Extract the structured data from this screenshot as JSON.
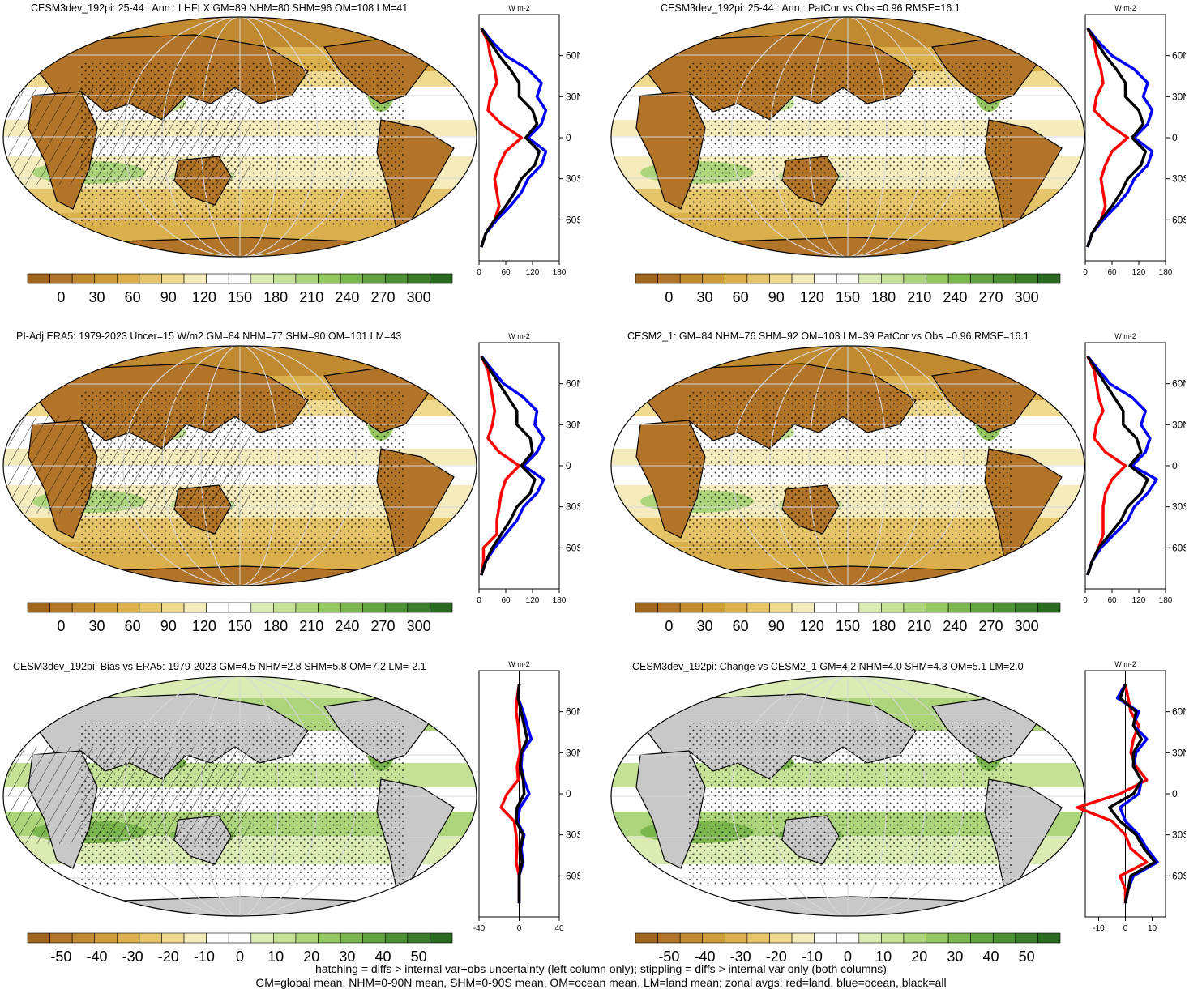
{
  "colors": {
    "land_line": "#ff0000",
    "ocean_line": "#0000ff",
    "all_line": "#000000",
    "missing_gray": "#c8c8c8",
    "abs_scale": [
      "#a0661e",
      "#b27428",
      "#c18a30",
      "#cf9c3a",
      "#dbb04c",
      "#e6c46a",
      "#eed98e",
      "#f5ebbc",
      "#ffffff",
      "#ffffff",
      "#dcebb4",
      "#c4e196",
      "#acd47a",
      "#94c662",
      "#7cb64e",
      "#64a440",
      "#4d9034",
      "#3a7c2a",
      "#2a6a20"
    ],
    "diff_scale": [
      "#a0661e",
      "#b27428",
      "#c18a30",
      "#cf9c3a",
      "#dbb04c",
      "#e6c46a",
      "#eed98e",
      "#f5ebbc",
      "#ffffff",
      "#ffffff",
      "#dcebb4",
      "#c4e196",
      "#acd47a",
      "#94c662",
      "#7cb64e",
      "#64a440",
      "#4d9034",
      "#3a7c2a",
      "#2a6a20"
    ]
  },
  "panels": [
    {
      "id": "p1",
      "title": "CESM3dev_192pi: 25-44 : Ann : LHFLX GM=89 NHM=80 SHM=96 OM=108 LM=41",
      "map_kind": "abs",
      "hatched": true,
      "colorbar_labels": [
        "0",
        "30",
        "60",
        "90",
        "120",
        "150",
        "180",
        "210",
        "240",
        "270",
        "300"
      ],
      "zonal": {
        "unit": "W m-2",
        "lat_labels": [
          "60N",
          "30N",
          "0",
          "30S",
          "60S"
        ],
        "lat_values": [
          60,
          30,
          0,
          -30,
          -60
        ],
        "xlim": [
          0,
          180
        ],
        "x_labels": [
          "0",
          "60",
          "120",
          "180"
        ],
        "x_ticks": [
          0,
          60,
          120,
          180
        ],
        "lat": [
          80,
          70,
          60,
          50,
          40,
          30,
          20,
          10,
          0,
          -10,
          -20,
          -30,
          -40,
          -50,
          -60,
          -70,
          -80
        ],
        "land": [
          5,
          20,
          25,
          35,
          40,
          25,
          20,
          50,
          95,
          60,
          45,
          35,
          40,
          45,
          35,
          15,
          5
        ],
        "ocean": [
          5,
          30,
          60,
          110,
          140,
          130,
          150,
          140,
          110,
          150,
          140,
          110,
          95,
          70,
          40,
          15,
          5
        ],
        "all": [
          5,
          25,
          45,
          70,
          90,
          90,
          120,
          130,
          105,
          135,
          125,
          95,
          80,
          60,
          35,
          15,
          5
        ]
      }
    },
    {
      "id": "p2",
      "title": "CESM3dev_192pi: 25-44 : Ann : PatCor vs Obs =0.96 RMSE=16.1",
      "map_kind": "abs",
      "hatched": false,
      "colorbar_labels": [
        "0",
        "30",
        "60",
        "90",
        "120",
        "150",
        "180",
        "210",
        "240",
        "270",
        "300"
      ],
      "zonal": {
        "unit": "W m-2",
        "lat_labels": [
          "60N",
          "30N",
          "0",
          "30S",
          "60S"
        ],
        "lat_values": [
          60,
          30,
          0,
          -30,
          -60
        ],
        "xlim": [
          0,
          180
        ],
        "x_labels": [
          "0",
          "60",
          "120",
          "180"
        ],
        "x_ticks": [
          0,
          60,
          120,
          180
        ],
        "lat": [
          80,
          70,
          60,
          50,
          40,
          30,
          20,
          10,
          0,
          -10,
          -20,
          -30,
          -40,
          -50,
          -60,
          -70,
          -80
        ],
        "land": [
          5,
          20,
          25,
          35,
          40,
          25,
          20,
          50,
          95,
          60,
          45,
          35,
          40,
          45,
          35,
          15,
          5
        ],
        "ocean": [
          5,
          30,
          60,
          110,
          140,
          130,
          150,
          140,
          110,
          150,
          140,
          110,
          95,
          70,
          40,
          15,
          5
        ],
        "all": [
          5,
          25,
          45,
          70,
          90,
          90,
          120,
          130,
          105,
          135,
          125,
          95,
          80,
          60,
          35,
          15,
          5
        ]
      }
    },
    {
      "id": "p3",
      "title": "PI-Adj ERA5: 1979-2023 Uncer=15 W/m2 GM=84 NHM=77 SHM=90 OM=101 LM=43",
      "map_kind": "abs",
      "hatched": true,
      "colorbar_labels": [
        "0",
        "30",
        "60",
        "90",
        "120",
        "150",
        "180",
        "210",
        "240",
        "270",
        "300"
      ],
      "zonal": {
        "unit": "W m-2",
        "lat_labels": [
          "60N",
          "30N",
          "0",
          "30S",
          "60S"
        ],
        "lat_values": [
          60,
          30,
          0,
          -30,
          -60
        ],
        "xlim": [
          0,
          180
        ],
        "x_labels": [
          "0",
          "60",
          "120",
          "180"
        ],
        "x_ticks": [
          0,
          60,
          120,
          180
        ],
        "lat": [
          80,
          70,
          60,
          50,
          40,
          30,
          20,
          10,
          0,
          -10,
          -20,
          -30,
          -40,
          -50,
          -60,
          -70,
          -80
        ],
        "land": [
          5,
          20,
          25,
          30,
          35,
          30,
          20,
          45,
          90,
          60,
          50,
          45,
          40,
          40,
          10,
          10,
          5
        ],
        "ocean": [
          5,
          30,
          55,
          100,
          130,
          125,
          145,
          130,
          100,
          145,
          130,
          100,
          85,
          60,
          35,
          15,
          5
        ],
        "all": [
          5,
          25,
          45,
          65,
          85,
          85,
          115,
          120,
          95,
          125,
          115,
          85,
          70,
          50,
          30,
          15,
          5
        ]
      }
    },
    {
      "id": "p4",
      "title": "CESM2_1: GM=84 NHM=76 SHM=92 OM=103 LM=39 PatCor vs Obs =0.96 RMSE=16.1",
      "map_kind": "abs",
      "hatched": false,
      "colorbar_labels": [
        "0",
        "30",
        "60",
        "90",
        "120",
        "150",
        "180",
        "210",
        "240",
        "270",
        "300"
      ],
      "zonal": {
        "unit": "W m-2",
        "lat_labels": [
          "60N",
          "30N",
          "0",
          "30S",
          "60S"
        ],
        "lat_values": [
          60,
          30,
          0,
          -30,
          -60
        ],
        "xlim": [
          0,
          180
        ],
        "x_labels": [
          "0",
          "60",
          "120",
          "180"
        ],
        "x_ticks": [
          0,
          60,
          120,
          180
        ],
        "lat": [
          80,
          70,
          60,
          50,
          40,
          30,
          20,
          10,
          0,
          -10,
          -20,
          -30,
          -40,
          -50,
          -60,
          -70,
          -80
        ],
        "land": [
          5,
          20,
          25,
          30,
          40,
          25,
          20,
          45,
          90,
          60,
          45,
          40,
          40,
          40,
          30,
          15,
          5
        ],
        "ocean": [
          5,
          30,
          55,
          105,
          135,
          125,
          145,
          135,
          105,
          160,
          140,
          110,
          95,
          65,
          35,
          15,
          5
        ],
        "all": [
          5,
          25,
          45,
          65,
          85,
          85,
          115,
          125,
          100,
          140,
          125,
          95,
          80,
          55,
          30,
          15,
          5
        ]
      }
    },
    {
      "id": "p5",
      "title": "CESM3dev_192pi: Bias vs ERA5: 1979-2023 GM=4.5 NHM=2.8 SHM=5.8 OM=7.2 LM=-2.1",
      "map_kind": "diff",
      "hatched": true,
      "colorbar_labels": [
        "-50",
        "-40",
        "-30",
        "-20",
        "-10",
        "0",
        "10",
        "20",
        "30",
        "40",
        "50"
      ],
      "zonal": {
        "unit": "W m-2",
        "lat_labels": [
          "60N",
          "30N",
          "0",
          "30S",
          "60S"
        ],
        "lat_values": [
          60,
          30,
          0,
          -30,
          -60
        ],
        "xlim": [
          -40,
          40
        ],
        "x_labels": [
          "-40",
          "0",
          "40"
        ],
        "x_ticks": [
          -40,
          0,
          40
        ],
        "lat": [
          80,
          70,
          60,
          50,
          40,
          30,
          20,
          10,
          0,
          -10,
          -20,
          -30,
          -40,
          -50,
          -60,
          -70,
          -80
        ],
        "land": [
          0,
          -2,
          -3,
          -1,
          0,
          1,
          -2,
          -1,
          -12,
          -18,
          -5,
          -3,
          -2,
          -3,
          0,
          0,
          0
        ],
        "ocean": [
          0,
          -1,
          4,
          8,
          12,
          3,
          2,
          5,
          10,
          1,
          -2,
          5,
          2,
          4,
          0,
          0,
          0
        ],
        "all": [
          0,
          -1,
          2,
          5,
          8,
          2,
          1,
          4,
          5,
          -2,
          -3,
          4,
          1,
          3,
          0,
          0,
          0
        ]
      }
    },
    {
      "id": "p6",
      "title": "CESM3dev_192pi: Change vs CESM2_1 GM=4.2 NHM=4.0 SHM=4.3 OM=5.1 LM=2.0",
      "map_kind": "diff",
      "hatched": false,
      "colorbar_labels": [
        "-50",
        "-40",
        "-30",
        "-20",
        "-10",
        "0",
        "10",
        "20",
        "30",
        "40",
        "50"
      ],
      "zonal": {
        "unit": "W m-2",
        "lat_labels": [
          "60N",
          "30N",
          "0",
          "30S",
          "60S"
        ],
        "lat_values": [
          60,
          30,
          0,
          -30,
          -60
        ],
        "xlim": [
          -15,
          15
        ],
        "x_labels": [
          "-10",
          "0",
          "10"
        ],
        "x_ticks": [
          -10,
          0,
          10
        ],
        "lat": [
          80,
          70,
          60,
          50,
          40,
          30,
          20,
          10,
          0,
          -10,
          -20,
          -30,
          -40,
          -50,
          -60,
          -70,
          -80
        ],
        "land": [
          0,
          1,
          2,
          5,
          3,
          2,
          4,
          8,
          -2,
          -18,
          -5,
          0,
          2,
          8,
          -2,
          0,
          0
        ],
        "ocean": [
          0,
          -3,
          5,
          3,
          8,
          4,
          3,
          6,
          5,
          -2,
          0,
          5,
          8,
          12,
          3,
          1,
          0
        ],
        "all": [
          0,
          -2,
          4,
          3,
          6,
          3,
          3,
          6,
          3,
          -6,
          -2,
          4,
          7,
          11,
          2,
          1,
          0
        ]
      }
    }
  ],
  "footer": {
    "line1": "hatching = diffs > internal var+obs uncertainty (left column only); stippling = diffs > internal var only (both columns)",
    "line2": "GM=global mean, NHM=0-90N mean, SHM=0-90S mean, OM=ocean mean, LM=land mean; zonal avgs: red=land, blue=ocean, black=all"
  }
}
